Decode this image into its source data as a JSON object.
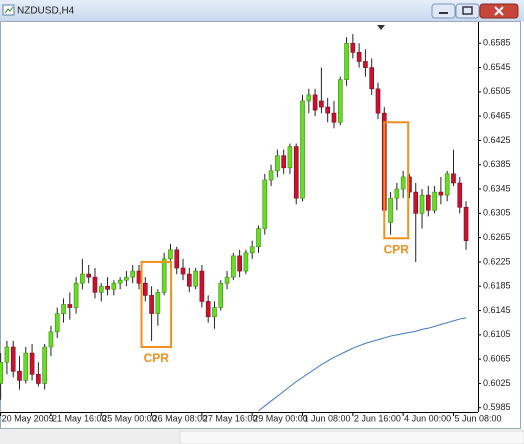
{
  "window_title": "NZDUSD,H4",
  "chart_data": {
    "type": "candlestick",
    "up_color": "#66dd22",
    "down_color": "#cc1030",
    "wick_color": "#222222",
    "xlim": [
      -0.1,
      75.9
    ],
    "ylim": [
      0.5978,
      0.662
    ],
    "grid": false,
    "yticks": [
      0.6585,
      0.6545,
      0.6505,
      0.6465,
      0.6425,
      0.6385,
      0.6345,
      0.6305,
      0.6265,
      0.6225,
      0.6185,
      0.6145,
      0.6105,
      0.6065,
      0.6025,
      0.5985
    ],
    "xticks": [
      {
        "value": 0,
        "label": "20 May 2009"
      },
      {
        "value": 8,
        "label": "21 May 16:00"
      },
      {
        "value": 16,
        "label": "25 May 00:00"
      },
      {
        "value": 24,
        "label": "26 May 08:00"
      },
      {
        "value": 32,
        "label": "27 May 16:00"
      },
      {
        "value": 40,
        "label": "29 May 00:00"
      },
      {
        "value": 48,
        "label": "1 Jun 08:00"
      },
      {
        "value": 56,
        "label": "2 Jun 16:00"
      },
      {
        "value": 64,
        "label": "4 Jun 00:00"
      },
      {
        "value": 72,
        "label": "5 Jun 08:00"
      }
    ],
    "open": [
      0.6025,
      0.606,
      0.6085,
      0.6045,
      0.603,
      0.6075,
      0.604,
      0.6025,
      0.6085,
      0.611,
      0.614,
      0.6155,
      0.615,
      0.619,
      0.6205,
      0.62,
      0.6175,
      0.6185,
      0.618,
      0.619,
      0.6195,
      0.62,
      0.621,
      0.619,
      0.617,
      0.614,
      0.6175,
      0.623,
      0.6245,
      0.6215,
      0.6205,
      0.6185,
      0.621,
      0.616,
      0.6135,
      0.615,
      0.619,
      0.62,
      0.6235,
      0.621,
      0.624,
      0.625,
      0.628,
      0.636,
      0.6375,
      0.64,
      0.638,
      0.6415,
      0.633,
      0.649,
      0.65,
      0.649,
      0.648,
      0.647,
      0.6455,
      0.6525,
      0.6585,
      0.657,
      0.6555,
      0.6545,
      0.651,
      0.647,
      0.629,
      0.633,
      0.6345,
      0.6365,
      0.634,
      0.6305,
      0.6335,
      0.631,
      0.634,
      0.6335,
      0.637,
      0.6355,
      0.6315
    ],
    "high": [
      0.6075,
      0.6095,
      0.6095,
      0.607,
      0.6085,
      0.609,
      0.606,
      0.609,
      0.612,
      0.615,
      0.6165,
      0.6175,
      0.62,
      0.623,
      0.622,
      0.6215,
      0.619,
      0.62,
      0.6195,
      0.62,
      0.621,
      0.622,
      0.622,
      0.62,
      0.6185,
      0.618,
      0.624,
      0.6255,
      0.625,
      0.623,
      0.6215,
      0.6215,
      0.622,
      0.617,
      0.616,
      0.6195,
      0.621,
      0.624,
      0.6245,
      0.6245,
      0.626,
      0.6285,
      0.637,
      0.6385,
      0.641,
      0.641,
      0.642,
      0.642,
      0.65,
      0.651,
      0.651,
      0.6545,
      0.6495,
      0.649,
      0.653,
      0.6595,
      0.66,
      0.6585,
      0.6575,
      0.656,
      0.652,
      0.648,
      0.634,
      0.6355,
      0.6375,
      0.637,
      0.6355,
      0.6345,
      0.635,
      0.635,
      0.6365,
      0.6375,
      0.641,
      0.6365,
      0.6325
    ],
    "low": [
      0.5998,
      0.604,
      0.6035,
      0.6015,
      0.6025,
      0.603,
      0.602,
      0.6015,
      0.607,
      0.61,
      0.6125,
      0.613,
      0.614,
      0.618,
      0.619,
      0.6165,
      0.616,
      0.617,
      0.617,
      0.618,
      0.6185,
      0.619,
      0.618,
      0.616,
      0.6095,
      0.612,
      0.617,
      0.6215,
      0.6205,
      0.6195,
      0.6175,
      0.618,
      0.615,
      0.6125,
      0.6115,
      0.6145,
      0.618,
      0.6195,
      0.62,
      0.6205,
      0.623,
      0.624,
      0.627,
      0.635,
      0.6365,
      0.637,
      0.637,
      0.632,
      0.6325,
      0.647,
      0.6465,
      0.647,
      0.6455,
      0.6445,
      0.645,
      0.6515,
      0.656,
      0.6545,
      0.653,
      0.65,
      0.646,
      0.63,
      0.627,
      0.631,
      0.633,
      0.633,
      0.6225,
      0.628,
      0.63,
      0.6305,
      0.632,
      0.6325,
      0.635,
      0.6305,
      0.6245
    ],
    "close": [
      0.606,
      0.6085,
      0.6045,
      0.603,
      0.6075,
      0.604,
      0.6025,
      0.6085,
      0.611,
      0.614,
      0.6155,
      0.615,
      0.619,
      0.6205,
      0.62,
      0.6175,
      0.6185,
      0.618,
      0.619,
      0.6195,
      0.62,
      0.621,
      0.619,
      0.617,
      0.614,
      0.6175,
      0.623,
      0.6245,
      0.6215,
      0.6205,
      0.6185,
      0.621,
      0.616,
      0.6135,
      0.615,
      0.619,
      0.62,
      0.6235,
      0.621,
      0.624,
      0.625,
      0.628,
      0.636,
      0.6375,
      0.64,
      0.638,
      0.6415,
      0.633,
      0.649,
      0.65,
      0.6475,
      0.648,
      0.647,
      0.6455,
      0.6525,
      0.6585,
      0.657,
      0.6555,
      0.6545,
      0.651,
      0.647,
      0.631,
      0.633,
      0.6345,
      0.6365,
      0.634,
      0.6305,
      0.6335,
      0.631,
      0.634,
      0.6335,
      0.637,
      0.6355,
      0.6315,
      0.626
    ],
    "ma": {
      "color": "#3a78c8",
      "values": [
        null,
        null,
        null,
        null,
        null,
        null,
        null,
        null,
        null,
        null,
        null,
        null,
        null,
        null,
        null,
        null,
        null,
        null,
        null,
        null,
        null,
        null,
        null,
        null,
        null,
        null,
        null,
        null,
        null,
        null,
        null,
        null,
        null,
        null,
        null,
        null,
        null,
        null,
        null,
        null,
        null,
        0.598,
        0.5988,
        0.5996,
        0.6004,
        0.6012,
        0.602,
        0.6028,
        0.6035,
        0.6042,
        0.6049,
        0.6056,
        0.6062,
        0.6068,
        0.6073,
        0.6078,
        0.6083,
        0.6087,
        0.6091,
        0.6094,
        0.6097,
        0.61,
        0.6103,
        0.6105,
        0.6107,
        0.6109,
        0.6111,
        0.6114,
        0.6116,
        0.6119,
        0.6122,
        0.6125,
        0.6128,
        0.6131,
        0.6133
      ]
    },
    "annotation_color": "#f0901e",
    "annotations": [
      {
        "text": "CPR",
        "from": 22.4,
        "to": 27.1,
        "high": 0.6225,
        "low": 0.6085
      },
      {
        "text": "CPR",
        "from": 61.0,
        "to": 64.8,
        "high": 0.6455,
        "low": 0.6264
      }
    ]
  }
}
